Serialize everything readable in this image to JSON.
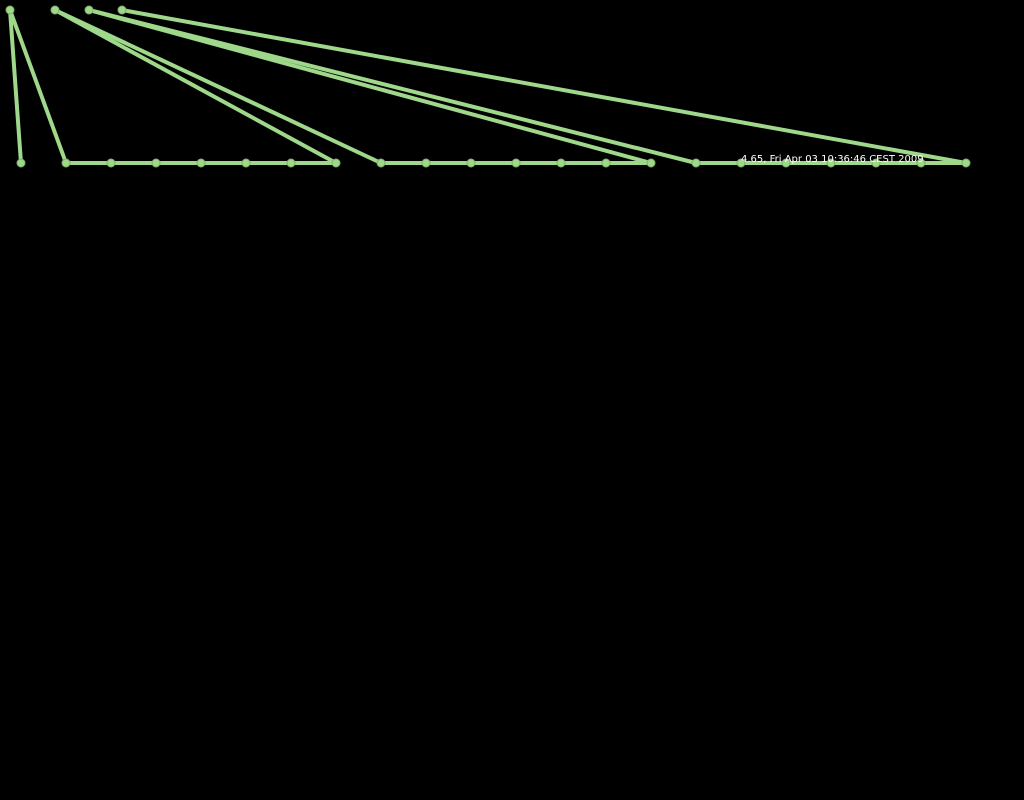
{
  "readout": {
    "text": "4.65, Fri Apr 03 10:36:46 CEST 2009"
  },
  "colors": {
    "background": "#000000",
    "edge": "#9fd88a",
    "node": "#9fd88a",
    "text": "#ffffff"
  }
}
